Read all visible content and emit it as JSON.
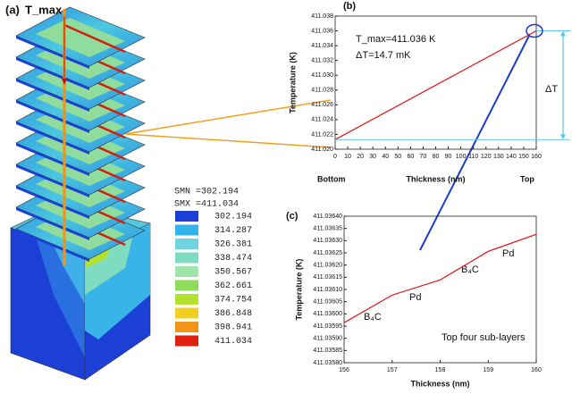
{
  "panel_a": {
    "label": "(a)",
    "tmax_label": "T_max",
    "smn": "SMN =302.194",
    "smx": "SMX =411.034",
    "legend": [
      {
        "label": "302.194",
        "color": "#1c3fd6"
      },
      {
        "label": "314.287",
        "color": "#32b4ea"
      },
      {
        "label": "326.381",
        "color": "#6fd6e0"
      },
      {
        "label": "338.474",
        "color": "#7fdcc0"
      },
      {
        "label": "350.567",
        "color": "#9fe4a8"
      },
      {
        "label": "362.661",
        "color": "#8fdc5c"
      },
      {
        "label": "374.754",
        "color": "#b4e030"
      },
      {
        "label": "386.848",
        "color": "#f2d020"
      },
      {
        "label": "398.941",
        "color": "#f29418"
      },
      {
        "label": "411.034",
        "color": "#e02010"
      }
    ]
  },
  "chart_data": [
    {
      "type": "line",
      "panel": "(b)",
      "xlabel": "Thickness (nm)",
      "ylabel": "Temperature (K)",
      "x": [
        0,
        160
      ],
      "series": [
        {
          "color": "#e02020",
          "values": [
            411.0213,
            411.036
          ]
        }
      ],
      "xlim": [
        0,
        160
      ],
      "xticks": [
        0,
        10,
        20,
        30,
        40,
        50,
        60,
        70,
        80,
        90,
        100,
        110,
        120,
        130,
        140,
        150,
        160
      ],
      "ylim": [
        411.02,
        411.038
      ],
      "yticks": [
        {
          "value": 411.02,
          "label": "411.020"
        },
        {
          "value": 411.022,
          "label": "411.022"
        },
        {
          "value": 411.024,
          "label": "411.024"
        },
        {
          "value": 411.026,
          "label": "411.026"
        },
        {
          "value": 411.028,
          "label": "411.028"
        },
        {
          "value": 411.03,
          "label": "411.030"
        },
        {
          "value": 411.032,
          "label": "411.032"
        },
        {
          "value": 411.034,
          "label": "411.034"
        },
        {
          "value": 411.036,
          "label": "411.036"
        },
        {
          "value": 411.038,
          "label": "411.038"
        }
      ],
      "annotations": [
        "T_max=411.036 K",
        "ΔT=14.7 mK",
        "ΔT",
        "Bottom",
        "Top"
      ]
    },
    {
      "type": "line",
      "panel": "(c)",
      "xlabel": "Thickness (nm)",
      "ylabel": "Temperature (K)",
      "x": [
        156,
        157,
        158,
        159,
        160
      ],
      "series": [
        {
          "color": "#e02020",
          "values": [
            411.035964,
            411.036077,
            411.036139,
            411.036256,
            411.036326
          ]
        }
      ],
      "xlim": [
        156,
        160
      ],
      "xticks": [
        156,
        157,
        158,
        159,
        160
      ],
      "ylim": [
        411.0358,
        411.0364
      ],
      "yticks": [
        {
          "value": 411.0358,
          "label": "411.03580"
        },
        {
          "value": 411.03585,
          "label": "411.03585"
        },
        {
          "value": 411.0359,
          "label": "411.03590"
        },
        {
          "value": 411.03595,
          "label": "411.03595"
        },
        {
          "value": 411.036,
          "label": "411.03600"
        },
        {
          "value": 411.03605,
          "label": "411.03605"
        },
        {
          "value": 411.0361,
          "label": "411.03610"
        },
        {
          "value": 411.03615,
          "label": "411.03615"
        },
        {
          "value": 411.0362,
          "label": "411.03620"
        },
        {
          "value": 411.03625,
          "label": "411.03625"
        },
        {
          "value": 411.0363,
          "label": "411.03630"
        },
        {
          "value": 411.03635,
          "label": "411.03635"
        },
        {
          "value": 411.0364,
          "label": "411.03640"
        }
      ],
      "annotations": [
        "B₄C",
        "Pd",
        "B₄C",
        "Pd",
        "Top four sub-layers"
      ]
    }
  ]
}
